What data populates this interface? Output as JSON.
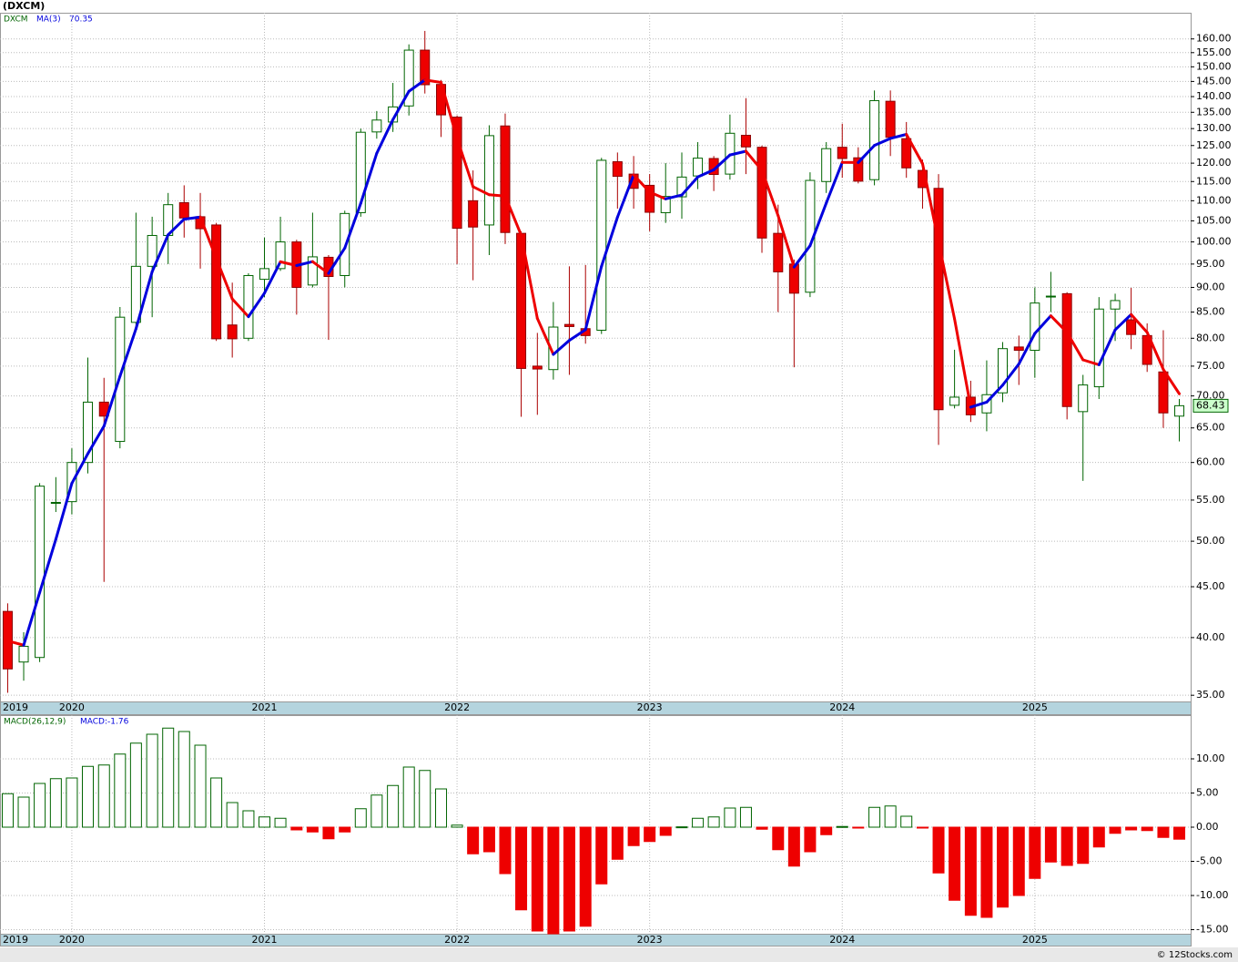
{
  "chart_data": [
    {
      "type": "candlestick",
      "title": "(DXCM)",
      "name": "DXCM",
      "x": [
        2019.667,
        2019.75,
        2019.833,
        2019.917,
        2020,
        2020.083,
        2020.167,
        2020.25,
        2020.333,
        2020.417,
        2020.5,
        2020.583,
        2020.667,
        2020.75,
        2020.833,
        2020.917,
        2021,
        2021.083,
        2021.167,
        2021.25,
        2021.333,
        2021.417,
        2021.5,
        2021.583,
        2021.667,
        2021.75,
        2021.833,
        2021.917,
        2022,
        2022.083,
        2022.167,
        2022.25,
        2022.333,
        2022.417,
        2022.5,
        2022.583,
        2022.667,
        2022.75,
        2022.833,
        2022.917,
        2023,
        2023.083,
        2023.167,
        2023.25,
        2023.333,
        2023.417,
        2023.5,
        2023.583,
        2023.667,
        2023.75,
        2023.833,
        2023.917,
        2024,
        2024.083,
        2024.167,
        2024.25,
        2024.333,
        2024.417,
        2024.5,
        2024.583,
        2024.667,
        2024.75,
        2024.833,
        2024.917,
        2025,
        2025.083,
        2025.167,
        2025.25,
        2025.333,
        2025.417,
        2025.5,
        2025.583,
        2025.667,
        2025.75
      ],
      "open": [
        42.5,
        37.8,
        38.2,
        54.7,
        54.8,
        60,
        69,
        63,
        83,
        94.5,
        101.5,
        109.5,
        106,
        104,
        82.5,
        80,
        91.7,
        94,
        100,
        90.5,
        96.5,
        92.5,
        107,
        129,
        132,
        137,
        155.9,
        144,
        133.5,
        110,
        104,
        130.8,
        102,
        75,
        74.4,
        82.6,
        81.8,
        81.5,
        120.4,
        117,
        114,
        107,
        111,
        116.5,
        121.3,
        117,
        128,
        124.5,
        102,
        95,
        89,
        115,
        124.5,
        121.5,
        115.5,
        138.5,
        127,
        118,
        113.2,
        68.5,
        69.8,
        67.3,
        70.5,
        78.4,
        77.8,
        88.1,
        88.7,
        67.5,
        71.5,
        85.6,
        83.5,
        80.5,
        74,
        66.8
      ],
      "high": [
        43.3,
        40.5,
        57.2,
        58,
        62,
        76.5,
        73,
        86,
        107,
        106,
        112,
        114,
        112,
        104.5,
        91,
        93,
        101,
        106,
        100.5,
        107,
        97,
        107.5,
        130,
        135.4,
        144.5,
        158,
        163,
        145.5,
        134,
        118,
        131,
        134.6,
        102.5,
        81,
        87,
        94.5,
        94.8,
        121.5,
        123,
        122,
        117,
        120,
        123,
        126,
        122,
        134.3,
        139.5,
        125,
        109,
        96,
        117.5,
        126,
        131.5,
        124.5,
        142,
        142,
        132,
        121,
        117,
        77.9,
        72.5,
        76,
        79.3,
        80.5,
        90,
        93.3,
        89,
        73.5,
        88,
        88.7,
        89.9,
        82.8,
        81.5,
        69.5
      ],
      "low": [
        35.2,
        36.2,
        37.8,
        53.5,
        53.2,
        58.5,
        45.5,
        62,
        82,
        84,
        95,
        101,
        94,
        79.5,
        76.5,
        79.5,
        88,
        93.5,
        84.5,
        90,
        79.7,
        90,
        106,
        127,
        129,
        134,
        141,
        127.5,
        95,
        91.5,
        97,
        99.5,
        66.7,
        67,
        72.7,
        73.5,
        79,
        80.8,
        108,
        108,
        102.5,
        104.5,
        105.5,
        113,
        112.5,
        115.5,
        117,
        97.5,
        85,
        74.8,
        88,
        112,
        116,
        114.5,
        114,
        122,
        116,
        108,
        62.5,
        68,
        65.9,
        64.5,
        69,
        71.8,
        73,
        85,
        66.3,
        57.5,
        69.5,
        79.5,
        78,
        74,
        65,
        63
      ],
      "close": [
        37.2,
        39.2,
        56.8,
        54.7,
        60,
        69,
        66.8,
        84,
        94.5,
        101.5,
        109,
        105.7,
        103.1,
        79.9,
        79.9,
        92.5,
        94,
        100,
        90,
        96.6,
        92.3,
        106.8,
        128.9,
        132.6,
        136.7,
        155.9,
        143.9,
        134.2,
        103.2,
        103.5,
        127.9,
        102.2,
        74.6,
        74.5,
        82.1,
        82.2,
        80.5,
        120.8,
        116.4,
        113.2,
        107.1,
        111.1,
        116.2,
        121.4,
        116.9,
        128.6,
        124.6,
        100.9,
        93.3,
        88.8,
        115.3,
        124.1,
        121.3,
        115.1,
        138.7,
        127.4,
        118.7,
        113.4,
        67.8,
        69.8,
        67,
        70.2,
        78.1,
        77.8,
        86.8,
        88.2,
        68.3,
        71.8,
        85.6,
        87.3,
        80.7,
        75.3,
        67.3,
        68.43
      ],
      "up_color": "#006400",
      "down_color": "#ee0000",
      "ma": {
        "name": "MA(3)",
        "up_color": "#0000dd",
        "down_color": "#ee0000",
        "values": [
          39.7,
          39.3,
          44.4,
          50.23,
          57.17,
          61.23,
          65.27,
          73.27,
          81.77,
          93.33,
          101.67,
          105.4,
          105.93,
          96.23,
          87.63,
          84.1,
          88.8,
          95.5,
          94.67,
          95.53,
          92.97,
          98.57,
          109.33,
          122.77,
          132.73,
          141.73,
          145.5,
          144.67,
          127.1,
          113.63,
          111.53,
          111.2,
          101.57,
          83.77,
          77.07,
          79.6,
          81.6,
          94.5,
          105.9,
          116.8,
          112.23,
          110.47,
          111.47,
          116.23,
          118.17,
          122.3,
          123.37,
          118.03,
          106.27,
          94.33,
          99.13,
          109.4,
          120.23,
          120.17,
          125.03,
          127.07,
          128.27,
          119.83,
          99.97,
          83.67,
          68.2,
          69,
          71.77,
          75.37,
          80.9,
          84.27,
          81.1,
          76.1,
          75.23,
          81.57,
          84.53,
          81.1,
          74.43,
          70.35
        ]
      },
      "log_y": true,
      "ylim": [
        34.5,
        170
      ],
      "yticks": [
        {
          "value": 35,
          "label": "35.00"
        },
        {
          "value": 40,
          "label": "40.00"
        },
        {
          "value": 45,
          "label": "45.00"
        },
        {
          "value": 50,
          "label": "50.00"
        },
        {
          "value": 55,
          "label": "55.00"
        },
        {
          "value": 60,
          "label": "60.00"
        },
        {
          "value": 65,
          "label": "65.00"
        },
        {
          "value": 70,
          "label": "70.00"
        },
        {
          "value": 75,
          "label": "75.00"
        },
        {
          "value": 80,
          "label": "80.00"
        },
        {
          "value": 85,
          "label": "85.00"
        },
        {
          "value": 90,
          "label": "90.00"
        },
        {
          "value": 95,
          "label": "95.00"
        },
        {
          "value": 100,
          "label": "100.00"
        },
        {
          "value": 105,
          "label": "105.00"
        },
        {
          "value": 110,
          "label": "110.00"
        },
        {
          "value": 115,
          "label": "115.00"
        },
        {
          "value": 120,
          "label": "120.00"
        },
        {
          "value": 125,
          "label": "125.00"
        },
        {
          "value": 130,
          "label": "130.00"
        },
        {
          "value": 135,
          "label": "135.00"
        },
        {
          "value": 140,
          "label": "140.00"
        },
        {
          "value": 145,
          "label": "145.00"
        },
        {
          "value": 150,
          "label": "150.00"
        },
        {
          "value": 155,
          "label": "155.00"
        },
        {
          "value": 160,
          "label": "160.00"
        }
      ],
      "xlim": [
        2019.627,
        2025.809
      ],
      "xticks": [
        2020,
        2021,
        2022,
        2023,
        2024,
        2025
      ],
      "x_start_label": "2019",
      "grid": true
    },
    {
      "type": "bar",
      "title": "MACD(26,12,9)",
      "value_label": "MACD:-1.76",
      "x": [
        2019.667,
        2019.75,
        2019.833,
        2019.917,
        2020,
        2020.083,
        2020.167,
        2020.25,
        2020.333,
        2020.417,
        2020.5,
        2020.583,
        2020.667,
        2020.75,
        2020.833,
        2020.917,
        2021,
        2021.083,
        2021.167,
        2021.25,
        2021.333,
        2021.417,
        2021.5,
        2021.583,
        2021.667,
        2021.75,
        2021.833,
        2021.917,
        2022,
        2022.083,
        2022.167,
        2022.25,
        2022.333,
        2022.417,
        2022.5,
        2022.583,
        2022.667,
        2022.75,
        2022.833,
        2022.917,
        2023,
        2023.083,
        2023.167,
        2023.25,
        2023.333,
        2023.417,
        2023.5,
        2023.583,
        2023.667,
        2023.75,
        2023.833,
        2023.917,
        2024,
        2024.083,
        2024.167,
        2024.25,
        2024.333,
        2024.417,
        2024.5,
        2024.583,
        2024.667,
        2024.75,
        2024.833,
        2024.917,
        2025,
        2025.083,
        2025.167,
        2025.25,
        2025.333,
        2025.417,
        2025.5,
        2025.583,
        2025.667,
        2025.75
      ],
      "values": [
        4.9,
        4.4,
        6.4,
        7.1,
        7.2,
        8.9,
        9.1,
        10.7,
        12.3,
        13.6,
        14.5,
        14,
        12,
        7.2,
        3.6,
        2.4,
        1.5,
        1.3,
        -0.4,
        -0.7,
        -1.7,
        -0.7,
        2.7,
        4.7,
        6.1,
        8.8,
        8.3,
        5.6,
        0.3,
        -3.9,
        -3.6,
        -6.8,
        -12.1,
        -15.2,
        -15.6,
        -15.2,
        -14.5,
        -8.3,
        -4.7,
        -2.7,
        -2.1,
        -1.2,
        0.05,
        1.3,
        1.5,
        2.8,
        2.9,
        -0.3,
        -3.3,
        -5.7,
        -3.6,
        -1.1,
        0.1,
        -0.1,
        2.9,
        3.1,
        1.6,
        -0.1,
        -6.7,
        -10.7,
        -12.9,
        -13.2,
        -11.7,
        -10,
        -7.5,
        -5.1,
        -5.6,
        -5.3,
        -2.9,
        -0.9,
        -0.4,
        -0.5,
        -1.5,
        -1.76
      ],
      "pos_color": "#006400",
      "neg_color": "#ee0000",
      "ylim": [
        -15.6,
        16.4
      ],
      "yticks": [
        {
          "value": -15,
          "label": "-15.00"
        },
        {
          "value": -10,
          "label": "-10.00"
        },
        {
          "value": -5,
          "label": "-5.00"
        },
        {
          "value": 0,
          "label": "0.00"
        },
        {
          "value": 5,
          "label": "5.00"
        },
        {
          "value": 10,
          "label": "10.00"
        }
      ],
      "xlim": [
        2019.627,
        2025.809
      ],
      "xticks": [
        2020,
        2021,
        2022,
        2023,
        2024,
        2025
      ],
      "x_start_label": "2019",
      "grid": true
    }
  ],
  "source": "© 12Stocks.com"
}
